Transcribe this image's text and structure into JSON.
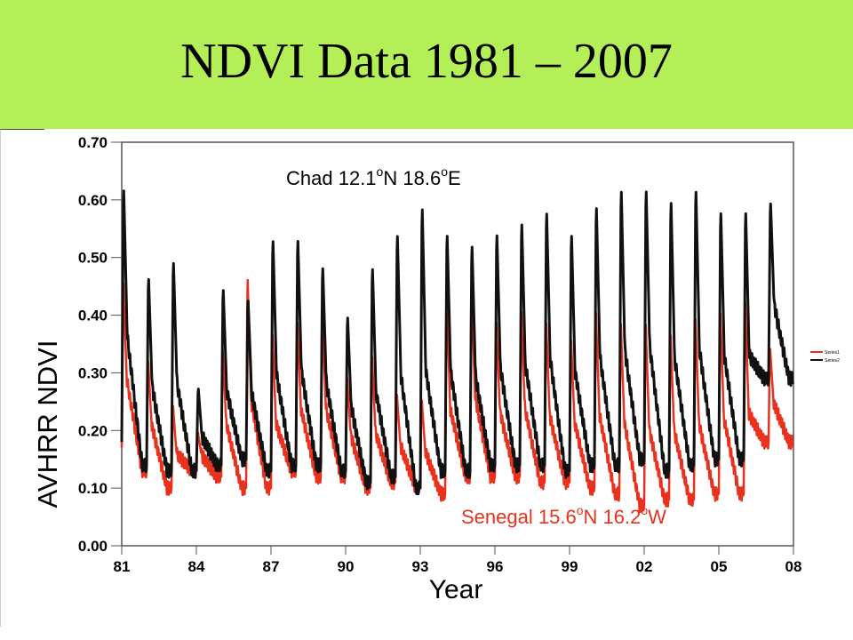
{
  "slide": {
    "title": "NDVI Data 1981 – 2007",
    "background": "#b5ef58"
  },
  "chart_data": {
    "type": "line",
    "ylabel": "AVHRR NDVI",
    "xlabel": "Year",
    "ylim": [
      0.0,
      0.7
    ],
    "xlim": [
      1981,
      2008
    ],
    "y_ticks": [
      "0.00",
      "0.10",
      "0.20",
      "0.30",
      "0.40",
      "0.50",
      "0.60",
      "0.70"
    ],
    "x_ticks": [
      "81",
      "84",
      "87",
      "90",
      "93",
      "96",
      "99",
      "02",
      "05",
      "08"
    ],
    "annotations": [
      {
        "name": "chad-annotation",
        "place": "Chad",
        "lat": "12.1",
        "lat_hem": "N",
        "lon": "18.6",
        "lon_hem": "E",
        "deg": "o",
        "color": "#000000"
      },
      {
        "name": "senegal-annotation",
        "place": "Senegal",
        "lat": "15.6",
        "lat_hem": "N",
        "lon": "16.2",
        "lon_hem": "W",
        "deg": "o",
        "color": "#e8321e"
      }
    ],
    "legend": {
      "placement": "right",
      "entries": [
        "Series1",
        "Series2"
      ]
    },
    "series": [
      {
        "name": "Series1",
        "color": "#e8321e",
        "peaks": [
          0.47,
          0.33,
          0.25,
          0.2,
          0.35,
          0.48,
          0.38,
          0.4,
          0.42,
          0.3,
          0.34,
          0.27,
          0.26,
          0.46,
          0.47,
          0.4,
          0.42,
          0.4,
          0.37,
          0.42,
          0.4,
          0.4,
          0.38,
          0.41,
          0.42,
          0.44,
          0.35
        ],
        "troughs": [
          0.17,
          0.13,
          0.1,
          0.13,
          0.12,
          0.1,
          0.1,
          0.13,
          0.12,
          0.12,
          0.1,
          0.11,
          0.1,
          0.09,
          0.12,
          0.12,
          0.12,
          0.11,
          0.11,
          0.1,
          0.09,
          0.07,
          0.08,
          0.08,
          0.09,
          0.09,
          0.18
        ]
      },
      {
        "name": "Series2",
        "color": "#111111",
        "peaks": [
          0.64,
          0.48,
          0.51,
          0.28,
          0.46,
          0.44,
          0.55,
          0.55,
          0.5,
          0.41,
          0.5,
          0.56,
          0.61,
          0.56,
          0.54,
          0.56,
          0.58,
          0.6,
          0.56,
          0.61,
          0.64,
          0.64,
          0.62,
          0.64,
          0.6,
          0.6,
          0.61
        ],
        "troughs": [
          0.18,
          0.14,
          0.13,
          0.13,
          0.14,
          0.15,
          0.13,
          0.14,
          0.14,
          0.13,
          0.11,
          0.12,
          0.1,
          0.13,
          0.13,
          0.14,
          0.14,
          0.14,
          0.13,
          0.14,
          0.14,
          0.15,
          0.13,
          0.14,
          0.15,
          0.15,
          0.29
        ]
      }
    ]
  }
}
